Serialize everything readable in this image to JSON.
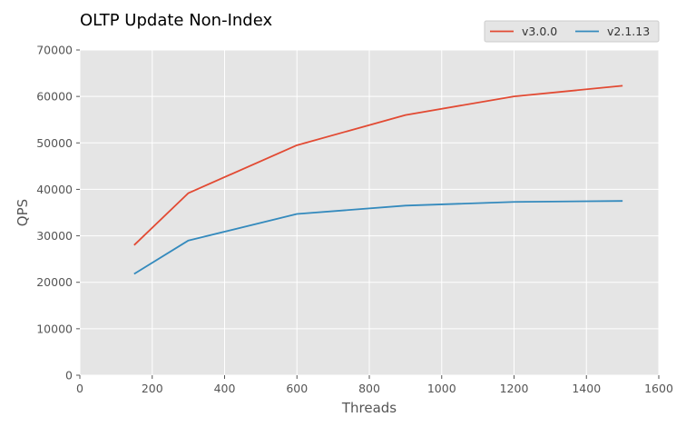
{
  "chart_data": {
    "type": "line",
    "title": "OLTP Update Non-Index",
    "xlabel": "Threads",
    "ylabel": "QPS",
    "xlim": [
      0,
      1600
    ],
    "ylim": [
      0,
      70000
    ],
    "xticks": [
      0,
      200,
      400,
      600,
      800,
      1000,
      1200,
      1400,
      1600
    ],
    "yticks": [
      0,
      10000,
      20000,
      30000,
      40000,
      50000,
      60000,
      70000
    ],
    "grid": true,
    "legend_position": "top-right",
    "x": [
      150,
      300,
      600,
      900,
      1200,
      1500
    ],
    "series": [
      {
        "name": "v3.0.0",
        "color": "#E24A33",
        "values": [
          28000,
          39200,
          49500,
          56000,
          60000,
          62300
        ]
      },
      {
        "name": "v2.1.13",
        "color": "#348ABD",
        "values": [
          21800,
          29000,
          34700,
          36500,
          37300,
          37500
        ]
      }
    ]
  }
}
